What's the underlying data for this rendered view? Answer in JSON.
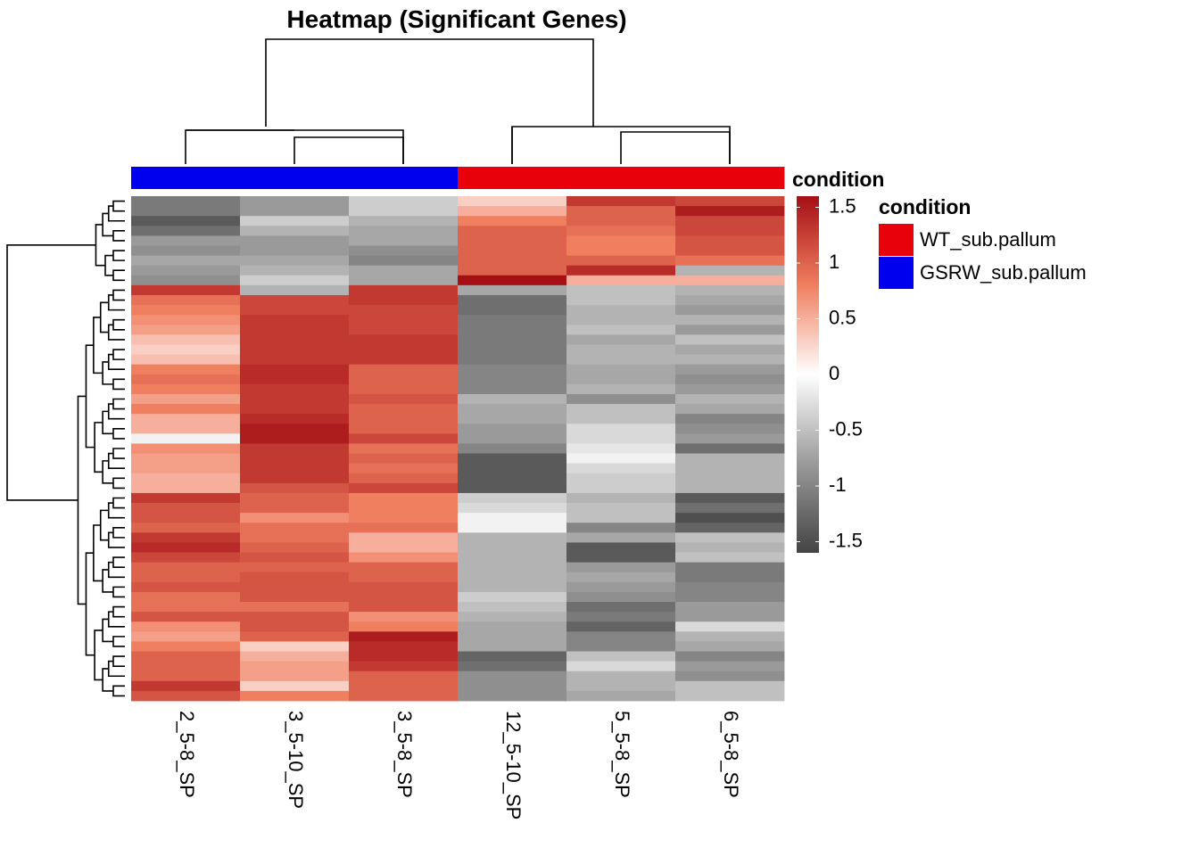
{
  "chart_data": {
    "type": "heatmap",
    "title": "Heatmap (Significant Genes)",
    "columns": [
      "2_5-8_SP",
      "3_5-10_SP",
      "3_5-8_SP",
      "12_5-10_SP",
      "5_5-8_SP",
      "6_5-8_SP"
    ],
    "column_condition": [
      "GSRW_sub.pallum",
      "GSRW_sub.pallum",
      "GSRW_sub.pallum",
      "WT_sub.pallum",
      "WT_sub.pallum",
      "WT_sub.pallum"
    ],
    "annotation_title": "condition",
    "annotation_legend": [
      {
        "label": "WT_sub.pallum",
        "color": "#E8000B"
      },
      {
        "label": "GSRW_sub.pallum",
        "color": "#0000EE"
      }
    ],
    "colorscale": {
      "low": "#444444",
      "mid": "#FFFFFF",
      "high": "#A50F15",
      "range": [
        -1.6,
        1.6
      ],
      "ticks": [
        -1.5,
        -1,
        -0.5,
        0,
        0.5,
        1,
        1.5
      ],
      "tick_labels": [
        "-1.5",
        "-1",
        "-0.5",
        "0",
        "0.5",
        "1",
        "1.5"
      ]
    },
    "values": [
      [
        -1.1,
        -0.8,
        -0.4,
        0.3,
        1.3,
        1.2
      ],
      [
        -1.1,
        -0.8,
        -0.4,
        0.5,
        1.0,
        1.5
      ],
      [
        -1.4,
        -0.4,
        -0.6,
        0.8,
        1.0,
        1.2
      ],
      [
        -1.2,
        -0.6,
        -0.7,
        1.0,
        0.9,
        1.2
      ],
      [
        -0.8,
        -0.8,
        -0.7,
        1.0,
        0.8,
        1.1
      ],
      [
        -0.9,
        -0.8,
        -0.9,
        1.0,
        0.8,
        1.1
      ],
      [
        -0.7,
        -0.7,
        -1.0,
        1.0,
        1.0,
        0.9
      ],
      [
        -0.8,
        -0.6,
        -0.7,
        1.0,
        1.4,
        -0.6
      ],
      [
        -0.9,
        -0.4,
        -0.7,
        1.6,
        0.5,
        0.5
      ],
      [
        1.3,
        -0.6,
        1.3,
        -0.7,
        -0.5,
        -0.6
      ],
      [
        0.9,
        1.2,
        1.3,
        -1.2,
        -0.5,
        -0.7
      ],
      [
        0.8,
        1.2,
        1.2,
        -1.2,
        -0.6,
        -0.8
      ],
      [
        0.7,
        1.3,
        1.2,
        -1.1,
        -0.6,
        -0.6
      ],
      [
        0.6,
        1.3,
        1.2,
        -1.1,
        -0.5,
        -0.8
      ],
      [
        0.4,
        1.3,
        1.3,
        -1.1,
        -0.7,
        -0.5
      ],
      [
        0.3,
        1.3,
        1.3,
        -1.1,
        -0.6,
        -0.7
      ],
      [
        0.4,
        1.3,
        1.3,
        -1.1,
        -0.6,
        -0.6
      ],
      [
        0.8,
        1.4,
        1.0,
        -1.0,
        -0.7,
        -0.8
      ],
      [
        0.9,
        1.4,
        1.0,
        -1.0,
        -0.7,
        -0.9
      ],
      [
        0.8,
        1.3,
        1.0,
        -1.0,
        -0.6,
        -0.8
      ],
      [
        0.6,
        1.3,
        1.1,
        -0.6,
        -0.9,
        -0.6
      ],
      [
        0.8,
        1.3,
        1.0,
        -0.7,
        -0.5,
        -0.7
      ],
      [
        0.5,
        1.4,
        1.0,
        -0.7,
        -0.5,
        -1.0
      ],
      [
        0.5,
        1.5,
        1.0,
        -0.8,
        -0.3,
        -0.9
      ],
      [
        -0.1,
        1.5,
        1.2,
        -0.8,
        -0.3,
        -0.8
      ],
      [
        0.7,
        1.3,
        0.9,
        -1.0,
        -0.2,
        -1.2
      ],
      [
        0.6,
        1.3,
        1.0,
        -1.4,
        -0.1,
        -0.6
      ],
      [
        0.6,
        1.3,
        0.9,
        -1.4,
        -0.3,
        -0.6
      ],
      [
        0.5,
        1.3,
        1.0,
        -1.4,
        -0.4,
        -0.6
      ],
      [
        0.5,
        1.1,
        1.2,
        -1.4,
        -0.4,
        -0.6
      ],
      [
        1.3,
        1.0,
        0.8,
        -0.4,
        -0.6,
        -1.4
      ],
      [
        1.1,
        1.0,
        0.8,
        -0.3,
        -0.5,
        -1.2
      ],
      [
        1.1,
        0.7,
        0.8,
        -0.1,
        -0.5,
        -1.5
      ],
      [
        1.0,
        0.9,
        0.9,
        -0.1,
        -1.0,
        -1.3
      ],
      [
        1.3,
        0.9,
        0.5,
        -0.6,
        -0.7,
        -0.5
      ],
      [
        1.4,
        1.0,
        0.5,
        -0.6,
        -1.4,
        -0.6
      ],
      [
        1.2,
        1.1,
        0.7,
        -0.6,
        -1.4,
        -0.5
      ],
      [
        1.0,
        1.0,
        1.0,
        -0.6,
        -0.8,
        -1.1
      ],
      [
        1.0,
        1.1,
        1.0,
        -0.6,
        -0.7,
        -1.1
      ],
      [
        1.1,
        1.1,
        1.1,
        -0.6,
        -0.8,
        -1.0
      ],
      [
        0.9,
        1.1,
        1.1,
        -0.4,
        -0.9,
        -1.0
      ],
      [
        0.9,
        0.9,
        1.1,
        -0.5,
        -1.2,
        -0.8
      ],
      [
        1.1,
        1.1,
        0.7,
        -0.6,
        -1.1,
        -0.8
      ],
      [
        0.7,
        1.1,
        0.8,
        -0.7,
        -1.3,
        -0.3
      ],
      [
        0.6,
        1.0,
        1.5,
        -0.7,
        -1.0,
        -0.6
      ],
      [
        0.8,
        0.3,
        1.4,
        -0.7,
        -1.0,
        -0.7
      ],
      [
        1.0,
        0.5,
        1.4,
        -1.3,
        -0.5,
        -1.0
      ],
      [
        1.0,
        0.6,
        1.3,
        -1.2,
        -0.3,
        -0.8
      ],
      [
        1.0,
        0.6,
        1.0,
        -0.9,
        -0.6,
        -0.9
      ],
      [
        1.3,
        0.3,
        1.0,
        -0.9,
        -0.6,
        -0.5
      ],
      [
        1.1,
        0.8,
        1.0,
        -0.9,
        -0.7,
        -0.5
      ]
    ]
  }
}
